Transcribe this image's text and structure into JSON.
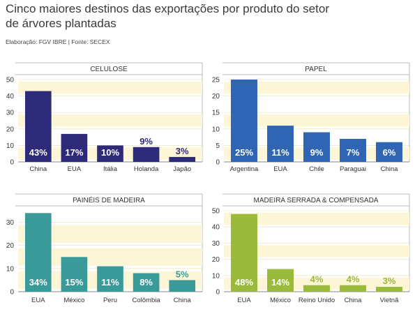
{
  "header": {
    "title": "Cinco maiores destinos das exportações por produto do setor de árvores plantadas",
    "source": "Elaboração: FGV IBRE | Fonte: SECEX"
  },
  "colors": {
    "celulose": "#2e2a7a",
    "papel": "#2f65b2",
    "paineis": "#3a9a9a",
    "madeira": "#9aba3a",
    "band": "#fdf6d6",
    "frame": "#b8b8b8",
    "label_light": "#ffffff"
  },
  "chart_data": [
    {
      "type": "bar",
      "title": "CELULOSE",
      "categories": [
        "China",
        "EUA",
        "Itália",
        "Holanda",
        "Japão"
      ],
      "values": [
        43,
        17,
        10,
        9,
        3
      ],
      "labels": [
        "43%",
        "17%",
        "10%",
        "9%",
        "3%"
      ],
      "ylim": [
        0,
        50
      ],
      "yticks": [
        0,
        10,
        20,
        30,
        40,
        50
      ],
      "color_key": "celulose",
      "bands": true
    },
    {
      "type": "bar",
      "title": "PAPEL",
      "categories": [
        "Argentina",
        "EUA",
        "Chile",
        "Paraguai",
        "China"
      ],
      "values": [
        25,
        11,
        9,
        7,
        6
      ],
      "labels": [
        "25%",
        "11%",
        "9%",
        "7%",
        "6%"
      ],
      "ylim": [
        0,
        25
      ],
      "yticks": [
        0,
        5,
        10,
        15,
        20,
        25
      ],
      "color_key": "papel",
      "bands": true
    },
    {
      "type": "bar",
      "title": "PAINÉIS DE MADEIRA",
      "categories": [
        "EUA",
        "México",
        "Peru",
        "Colômbia",
        "China"
      ],
      "values": [
        34,
        15,
        11,
        8,
        5
      ],
      "labels": [
        "34%",
        "15%",
        "11%",
        "8%",
        "5%"
      ],
      "ylim": [
        0,
        35
      ],
      "yticks": [
        0,
        10,
        20,
        30
      ],
      "color_key": "paineis",
      "bands": false
    },
    {
      "type": "bar",
      "title": "MADEIRA SERRADA & COMPENSADA",
      "categories": [
        "EUA",
        "México",
        "Reino Unido",
        "China",
        "Vietnã"
      ],
      "values": [
        48,
        14,
        4,
        4,
        3
      ],
      "labels": [
        "48%",
        "14%",
        "4%",
        "4%",
        "3%"
      ],
      "ylim": [
        0,
        50
      ],
      "yticks": [
        0,
        10,
        20,
        30,
        40,
        50
      ],
      "color_key": "madeira",
      "bands": true
    }
  ]
}
